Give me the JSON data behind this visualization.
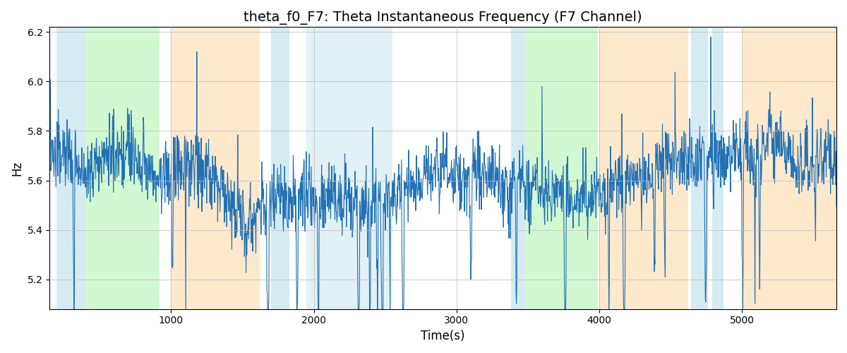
{
  "title": "theta_f0_F7: Theta Instantaneous Frequency (F7 Channel)",
  "xlabel": "Time(s)",
  "ylabel": "Hz",
  "ylim": [
    5.08,
    6.22
  ],
  "xlim": [
    150,
    5660
  ],
  "line_color": "#2171b5",
  "line_width": 0.8,
  "bg_color": "white",
  "grid_color": "#bbbbbb",
  "bands": [
    {
      "start": 200,
      "end": 400,
      "color": "#add8e6",
      "alpha": 0.5
    },
    {
      "start": 400,
      "end": 920,
      "color": "#90ee90",
      "alpha": 0.4
    },
    {
      "start": 1000,
      "end": 1620,
      "color": "#ffd59a",
      "alpha": 0.5
    },
    {
      "start": 1700,
      "end": 1830,
      "color": "#add8e6",
      "alpha": 0.5
    },
    {
      "start": 1950,
      "end": 2550,
      "color": "#add8e6",
      "alpha": 0.35
    },
    {
      "start": 3380,
      "end": 3480,
      "color": "#add8e6",
      "alpha": 0.5
    },
    {
      "start": 3480,
      "end": 3990,
      "color": "#90ee90",
      "alpha": 0.4
    },
    {
      "start": 4000,
      "end": 4620,
      "color": "#ffd59a",
      "alpha": 0.5
    },
    {
      "start": 4640,
      "end": 4760,
      "color": "#add8e6",
      "alpha": 0.5
    },
    {
      "start": 4790,
      "end": 4870,
      "color": "#add8e6",
      "alpha": 0.5
    },
    {
      "start": 5000,
      "end": 5660,
      "color": "#ffd59a",
      "alpha": 0.5
    }
  ],
  "title_fontsize": 14,
  "mean_freq": 5.7,
  "base_noise": 0.07,
  "spike_noise": 0.15,
  "n_points": 2000,
  "seed": 137
}
